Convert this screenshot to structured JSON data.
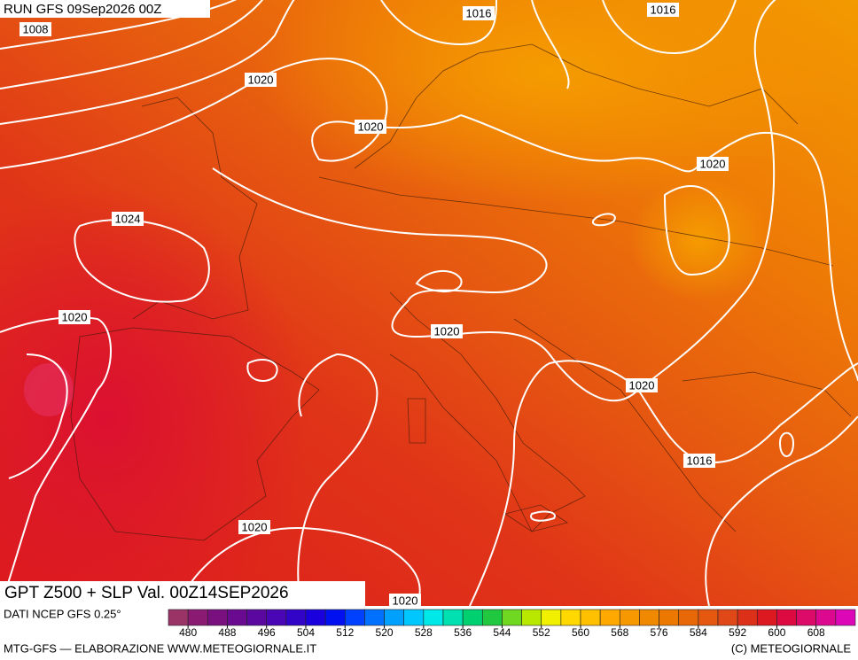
{
  "header": {
    "run": "RUN GFS 09Sep2026 00Z"
  },
  "map": {
    "isobar_labels": [
      1008,
      1016,
      1016,
      1020,
      1020,
      1020,
      1024,
      1020,
      1020,
      1020,
      1016,
      1020,
      1020
    ]
  },
  "title": "GPT Z500 + SLP Val. 00Z14SEP2026",
  "source": "DATI NCEP GFS 0.25°",
  "colorbar": {
    "labels": [
      480,
      488,
      496,
      504,
      512,
      520,
      528,
      536,
      544,
      552,
      560,
      568,
      576,
      584,
      592,
      600,
      608
    ],
    "colors": [
      "#9a3366",
      "#8a1a72",
      "#7a0f80",
      "#6a0a90",
      "#5a08a0",
      "#4a06b4",
      "#3204c8",
      "#1a00dc",
      "#0010f0",
      "#0040ff",
      "#0070ff",
      "#00a0ff",
      "#00c8ff",
      "#00e8e8",
      "#00e0b0",
      "#00d070",
      "#20c840",
      "#70d820",
      "#b8e800",
      "#f0f000",
      "#ffd800",
      "#ffc000",
      "#ffa800",
      "#f89800",
      "#f08800",
      "#ec7800",
      "#e86808",
      "#e45810",
      "#e04818",
      "#dc3018",
      "#dc1820",
      "#dc0a40",
      "#dc0a68",
      "#dc0890",
      "#dc08b8"
    ]
  },
  "footer": {
    "left": "MTG-GFS — ELABORAZIONE WWW.METEOGIORNALE.IT",
    "right": "(C) METEOGIORNALE"
  }
}
